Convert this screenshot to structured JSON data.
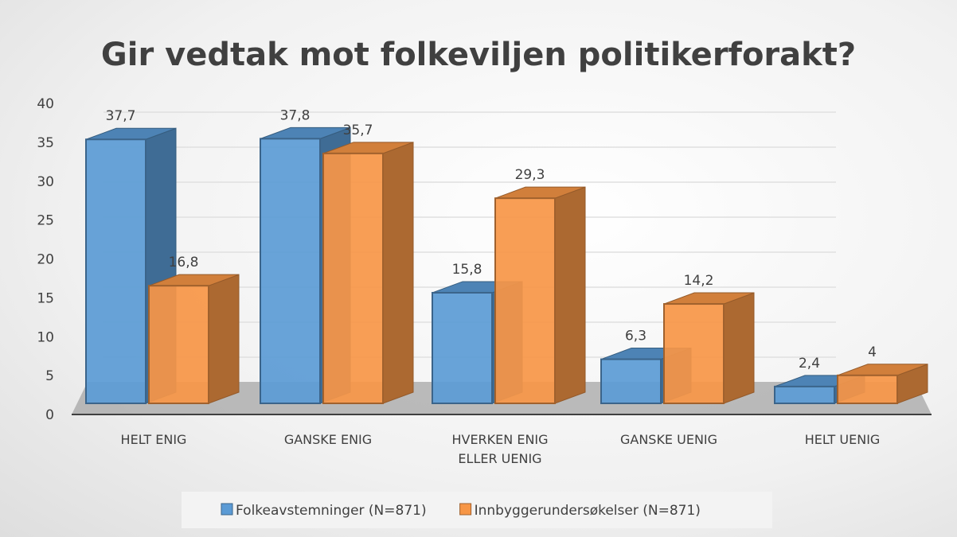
{
  "chart_data": {
    "type": "bar3d",
    "title": "Gir vedtak mot folkeviljen politikerforakt?",
    "categories": [
      "HELT ENIG",
      "GANSKE ENIG",
      "HVERKEN ENIG ELLER UENIG",
      "GANSKE UENIG",
      "HELT UENIG"
    ],
    "series": [
      {
        "name": "Folkeavstemninger (N=871)",
        "color": "#5b9bd5",
        "values": [
          37.7,
          37.8,
          15.8,
          6.3,
          2.4
        ],
        "value_labels": [
          "37,7",
          "37,8",
          "15,8",
          "6,3",
          "2,4"
        ]
      },
      {
        "name": "Innbyggerundersøkelser (N=871)",
        "color": "#f79646",
        "values": [
          16.8,
          35.7,
          29.3,
          14.2,
          4
        ],
        "value_labels": [
          "16,8",
          "35,7",
          "29,3",
          "14,2",
          "4"
        ]
      }
    ],
    "ylim": [
      0,
      40
    ],
    "yticks": [
      0,
      5,
      10,
      15,
      20,
      25,
      30,
      35,
      40
    ],
    "grid": true,
    "legend": "bottom"
  }
}
